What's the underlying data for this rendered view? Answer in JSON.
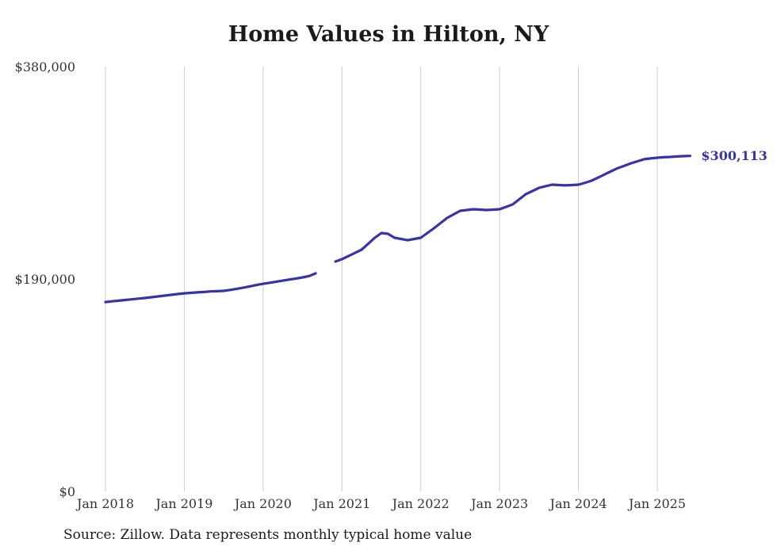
{
  "title": "Home Values in Hilton, NY",
  "end_label": "$300,113",
  "source_note": "Source: Zillow. Data represents monthly typical home value",
  "colors": {
    "line": "#3733a8",
    "end_label": "#3733a8",
    "gridline": "#cccccc",
    "title": "#1a1a1a",
    "axis_label": "#333333"
  },
  "chart_data": {
    "type": "line",
    "title": "Home Values in Hilton, NY",
    "series_name": "Typical home value",
    "unit": "USD",
    "frequency": "monthly",
    "start_month": "2018-01",
    "end_month": "2025-06",
    "final_value": 300113,
    "final_value_label": "$300,113",
    "ylim": [
      0,
      380000
    ],
    "y_ticks": [
      0,
      190000,
      380000
    ],
    "y_tick_labels": [
      "$0",
      "$190,000",
      "$380,000"
    ],
    "x_tick_labels": [
      "Jan 2018",
      "Jan 2019",
      "Jan 2020",
      "Jan 2021",
      "Jan 2022",
      "Jan 2023",
      "Jan 2024",
      "Jan 2025"
    ],
    "grid": "vertical-only",
    "legend": "none",
    "gap_months": [
      "2020-10",
      "2020-11"
    ],
    "months": [
      "2018-01",
      "2018-02",
      "2018-03",
      "2018-04",
      "2018-05",
      "2018-06",
      "2018-07",
      "2018-08",
      "2018-09",
      "2018-10",
      "2018-11",
      "2018-12",
      "2019-01",
      "2019-02",
      "2019-03",
      "2019-04",
      "2019-05",
      "2019-06",
      "2019-07",
      "2019-08",
      "2019-09",
      "2019-10",
      "2019-11",
      "2019-12",
      "2020-01",
      "2020-02",
      "2020-03",
      "2020-04",
      "2020-05",
      "2020-06",
      "2020-07",
      "2020-08",
      "2020-09",
      "2020-10",
      "2020-11",
      "2020-12",
      "2021-01",
      "2021-02",
      "2021-03",
      "2021-04",
      "2021-05",
      "2021-06",
      "2021-07",
      "2021-08",
      "2021-09",
      "2021-10",
      "2021-11",
      "2021-12",
      "2022-01",
      "2022-02",
      "2022-03",
      "2022-04",
      "2022-05",
      "2022-06",
      "2022-07",
      "2022-08",
      "2022-09",
      "2022-10",
      "2022-11",
      "2022-12",
      "2023-01",
      "2023-02",
      "2023-03",
      "2023-04",
      "2023-05",
      "2023-06",
      "2023-07",
      "2023-08",
      "2023-09",
      "2023-10",
      "2023-11",
      "2023-12",
      "2024-01",
      "2024-02",
      "2024-03",
      "2024-04",
      "2024-05",
      "2024-06",
      "2024-07",
      "2024-08",
      "2024-09",
      "2024-10",
      "2024-11",
      "2024-12",
      "2025-01",
      "2025-02",
      "2025-03",
      "2025-04",
      "2025-05",
      "2025-06"
    ],
    "values": [
      169400,
      170000,
      170600,
      171200,
      171800,
      172400,
      173000,
      173700,
      174400,
      175100,
      175800,
      176500,
      177200,
      177600,
      178000,
      178400,
      178900,
      179100,
      179400,
      180200,
      181200,
      182300,
      183400,
      184600,
      185700,
      186600,
      187600,
      188500,
      189500,
      190400,
      191400,
      192600,
      195000,
      null,
      null,
      205600,
      207700,
      210500,
      213400,
      216200,
      221500,
      226900,
      231100,
      230400,
      226900,
      225800,
      224700,
      225800,
      226900,
      231100,
      235400,
      240000,
      244600,
      247800,
      251000,
      251700,
      252400,
      252000,
      251700,
      252000,
      252400,
      254500,
      256700,
      261300,
      265900,
      268700,
      271500,
      273000,
      274400,
      274000,
      273700,
      274000,
      274400,
      276100,
      277900,
      280700,
      283600,
      286400,
      289200,
      291300,
      293500,
      295300,
      297100,
      297800,
      298500,
      298900,
      299200,
      299600,
      299900,
      300113
    ]
  }
}
